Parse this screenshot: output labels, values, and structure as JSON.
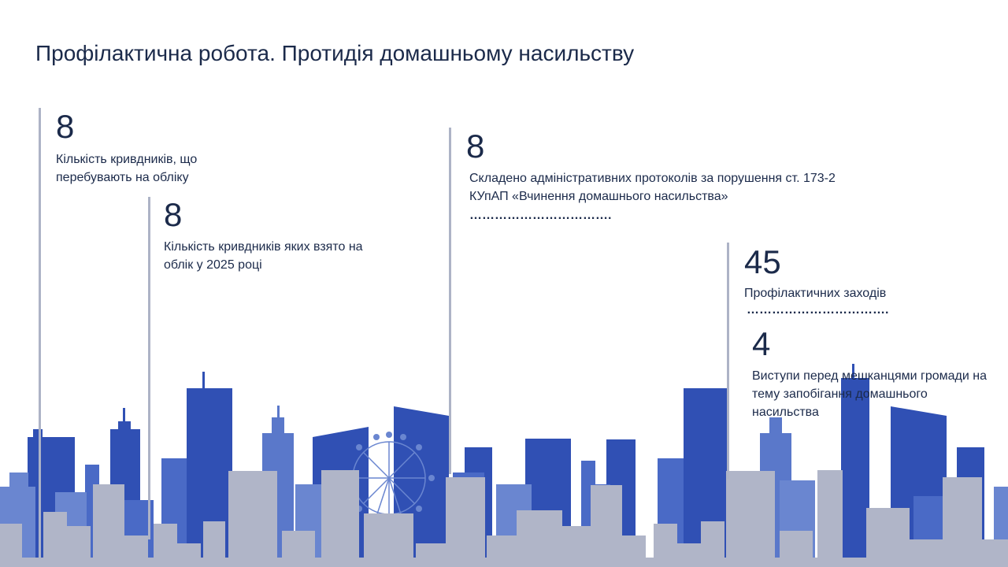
{
  "title": "Профілактична робота. Протидія домашньому насильству",
  "colors": {
    "text": "#1b2a4a",
    "line": "#adb3c6",
    "building_dark": "#3050b4",
    "building_mid": "#4a6ac6",
    "building_light": "#6a86d0",
    "building_grey": "#b0b5c8"
  },
  "stats": [
    {
      "value": "8",
      "label": "Кількість кривдників, що перебувають на обліку"
    },
    {
      "value": "8",
      "label": "Кількість кривдників яких взято на облік у 2025 році"
    },
    {
      "value": "8",
      "label": "Складено адміністративних протоколів за порушення ст. 173-2 КУпАП «Вчинення домашнього насильства»",
      "dots": "……………………………."
    },
    {
      "value": "45",
      "label": "Профілактичних заходів",
      "dots": "……………………………."
    },
    {
      "value": "4",
      "label": "Виступи перед мешканцями громади на тему запобігання домашнього насильства"
    }
  ]
}
